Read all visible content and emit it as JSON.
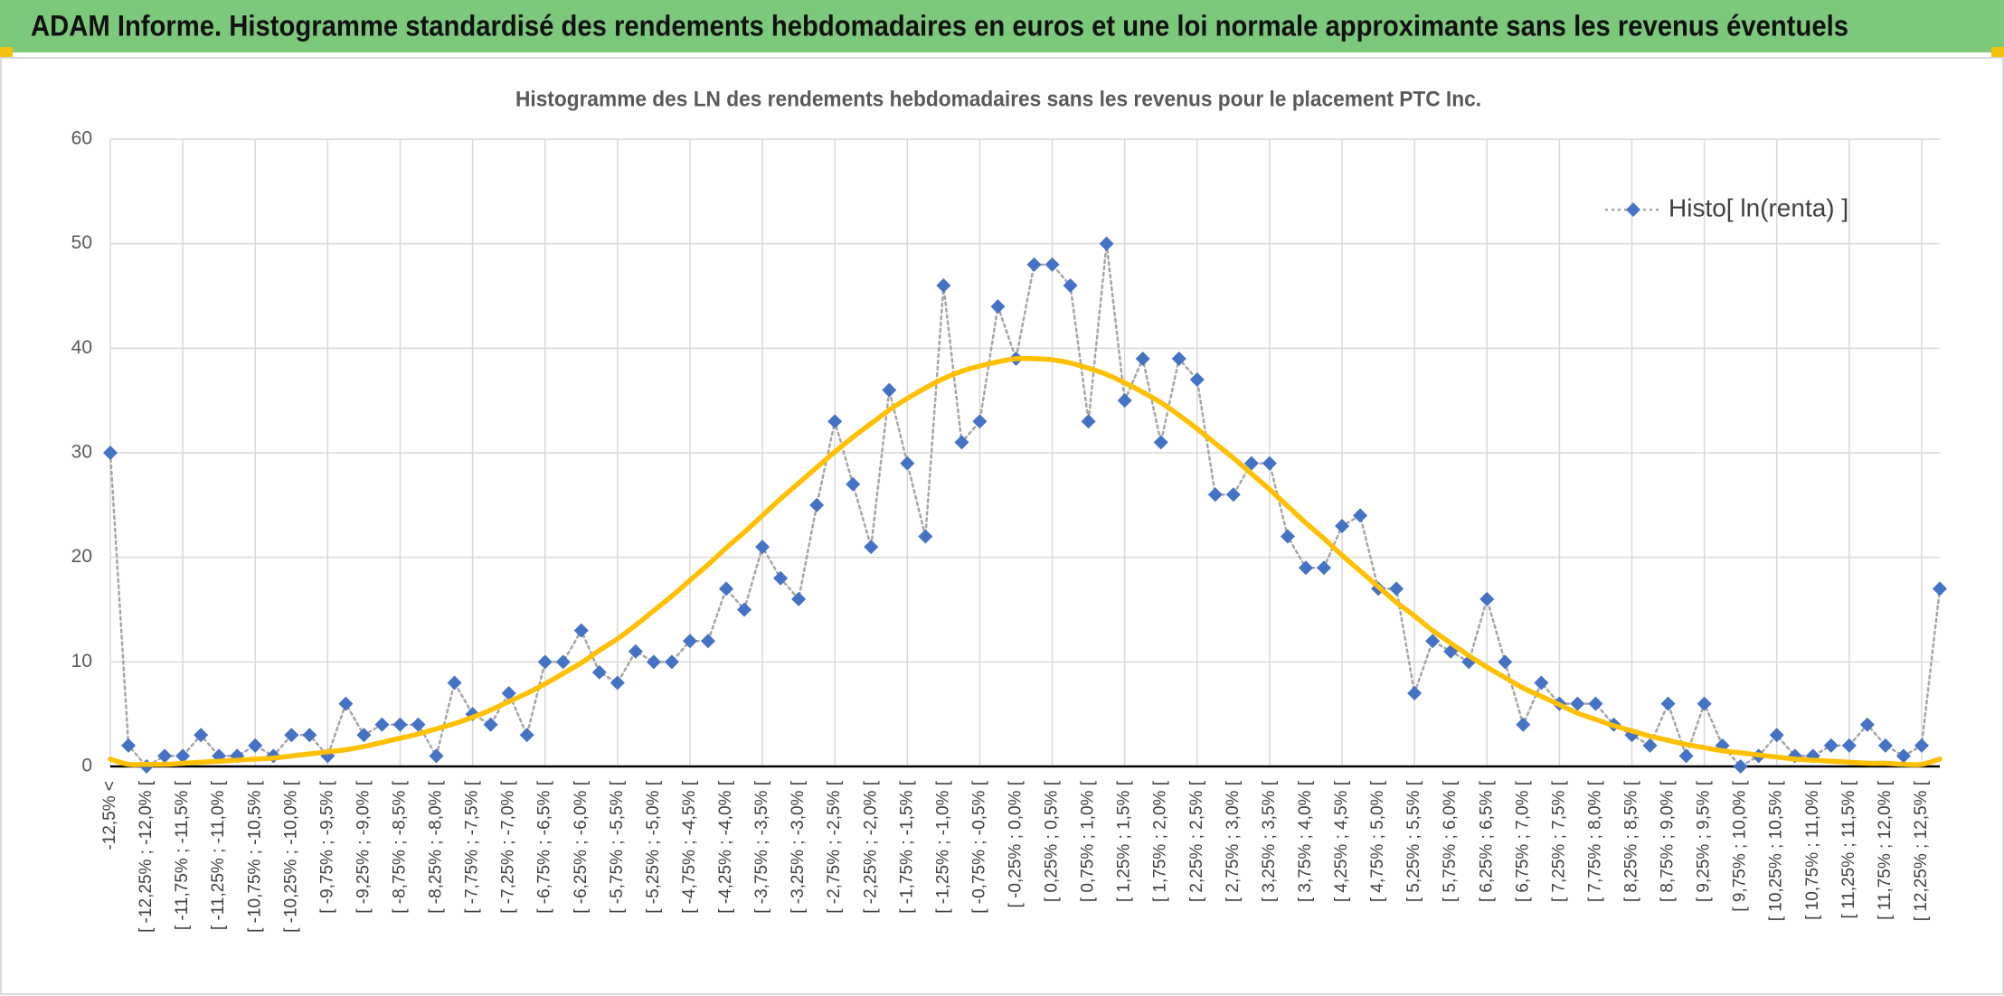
{
  "header": {
    "title": "ADAM Informe. Histogramme standardisé des rendements hebdomadaires en euros et une loi normale approximante sans les revenus éventuels"
  },
  "chart_data": {
    "type": "line",
    "title": "Histogramme des LN des rendements hebdomadaires sans les revenus pour le placement PTC Inc.",
    "categories": [
      "-12,5% <",
      null,
      "[ -12,25% ; -12,0% [",
      null,
      "[ -11,75% ; -11,5% [",
      null,
      "[ -11,25% ; -11,0% [",
      null,
      "[ -10,75% ; -10,5% [",
      null,
      "[ -10,25% ; -10,0% [",
      null,
      "[ -9,75% ; -9,5% [",
      null,
      "[ -9,25% ; -9,0% [",
      null,
      "[ -8,75% ; -8,5% [",
      null,
      "[ -8,25% ; -8,0% [",
      null,
      "[ -7,75% ; -7,5% [",
      null,
      "[ -7,25% ; -7,0% [",
      null,
      "[ -6,75% ; -6,5% [",
      null,
      "[ -6,25% ; -6,0% [",
      null,
      "[ -5,75% ; -5,5% [",
      null,
      "[ -5,25% ; -5,0% [",
      null,
      "[ -4,75% ; -4,5% [",
      null,
      "[ -4,25% ; -4,0% [",
      null,
      "[ -3,75% ; -3,5% [",
      null,
      "[ -3,25% ; -3,0% [",
      null,
      "[ -2,75% ; -2,5% [",
      null,
      "[ -2,25% ; -2,0% [",
      null,
      "[ -1,75% ; -1,5% [",
      null,
      "[ -1,25% ; -1,0% [",
      null,
      "[ -0,75% ; -0,5% [",
      null,
      "[ -0,25% ; 0,0% [",
      null,
      "[ 0,25% ; 0,5% [",
      null,
      "[ 0,75% ; 1,0% [",
      null,
      "[ 1,25% ; 1,5% [",
      null,
      "[ 1,75% ; 2,0% [",
      null,
      "[ 2,25% ; 2,5% [",
      null,
      "[ 2,75% ; 3,0% [",
      null,
      "[ 3,25% ; 3,5% [",
      null,
      "[ 3,75% ; 4,0% [",
      null,
      "[ 4,25% ; 4,5% [",
      null,
      "[ 4,75% ; 5,0% [",
      null,
      "[ 5,25% ; 5,5% [",
      null,
      "[ 5,75% ; 6,0% [",
      null,
      "[ 6,25% ; 6,5% [",
      null,
      "[ 6,75% ; 7,0% [",
      null,
      "[ 7,25% ; 7,5% [",
      null,
      "[ 7,75% ; 8,0% [",
      null,
      "[ 8,25% ; 8,5% [",
      null,
      "[ 8,75% ; 9,0% [",
      null,
      "[ 9,25% ; 9,5% [",
      null,
      "[ 9,75% ; 10,0% [",
      null,
      "[ 10,25% ; 10,5% [",
      null,
      "[ 10,75% ; 11,0% [",
      null,
      "[ 11,25% ; 11,5% [",
      null,
      "[ 11,75% ; 12,0% [",
      null,
      "[ 12,25% ; 12,5% [",
      null
    ],
    "series": [
      {
        "name": "Histo[ ln(renta) ]",
        "color": "#4472c4",
        "line_color": "#a5a5a5",
        "marker": "diamond",
        "line_style": "dotted",
        "values": [
          30,
          2,
          0,
          1,
          1,
          3,
          1,
          1,
          2,
          1,
          3,
          3,
          1,
          6,
          3,
          4,
          4,
          4,
          1,
          8,
          5,
          4,
          7,
          3,
          10,
          10,
          13,
          9,
          8,
          11,
          10,
          10,
          12,
          12,
          17,
          15,
          21,
          18,
          16,
          25,
          33,
          27,
          21,
          36,
          29,
          22,
          46,
          31,
          33,
          44,
          39,
          48,
          48,
          46,
          33,
          50,
          35,
          39,
          31,
          39,
          37,
          26,
          26,
          29,
          29,
          22,
          19,
          19,
          23,
          24,
          17,
          17,
          7,
          12,
          11,
          10,
          16,
          10,
          4,
          8,
          6,
          6,
          6,
          4,
          3,
          2,
          6,
          1,
          6,
          2,
          0,
          1,
          3,
          1,
          1,
          2,
          2,
          4,
          2,
          1,
          2,
          17
        ]
      },
      {
        "color": "#ffc000",
        "marker": "none",
        "line_style": "smooth",
        "values": [
          0.7,
          0.2,
          0.2,
          0.2,
          0.3,
          0.4,
          0.5,
          0.6,
          0.7,
          0.8,
          1.0,
          1.2,
          1.4,
          1.6,
          1.9,
          2.3,
          2.7,
          3.1,
          3.6,
          4.1,
          4.7,
          5.4,
          6.2,
          7.0,
          7.9,
          8.9,
          9.9,
          11.1,
          12.2,
          13.5,
          14.9,
          16.3,
          17.8,
          19.3,
          20.9,
          22.4,
          24.0,
          25.6,
          27.1,
          28.6,
          30.1,
          31.5,
          32.8,
          34.1,
          35.2,
          36.2,
          37.1,
          37.8,
          38.3,
          38.7,
          39.0,
          39.0,
          38.9,
          38.6,
          38.1,
          37.5,
          36.7,
          35.8,
          34.8,
          33.6,
          32.3,
          30.9,
          29.5,
          28.0,
          26.5,
          24.9,
          23.3,
          21.8,
          20.2,
          18.7,
          17.2,
          15.7,
          14.4,
          13.0,
          11.8,
          10.6,
          9.5,
          8.5,
          7.5,
          6.7,
          5.9,
          5.1,
          4.5,
          3.9,
          3.4,
          2.9,
          2.5,
          2.1,
          1.8,
          1.5,
          1.3,
          1.1,
          0.9,
          0.7,
          0.6,
          0.5,
          0.4,
          0.3,
          0.3,
          0.2,
          0.2,
          0.7
        ]
      }
    ],
    "ylim": [
      0,
      60
    ],
    "yticks": [
      0,
      10,
      20,
      30,
      40,
      50,
      60
    ],
    "grid": true,
    "legend": "top-right"
  }
}
